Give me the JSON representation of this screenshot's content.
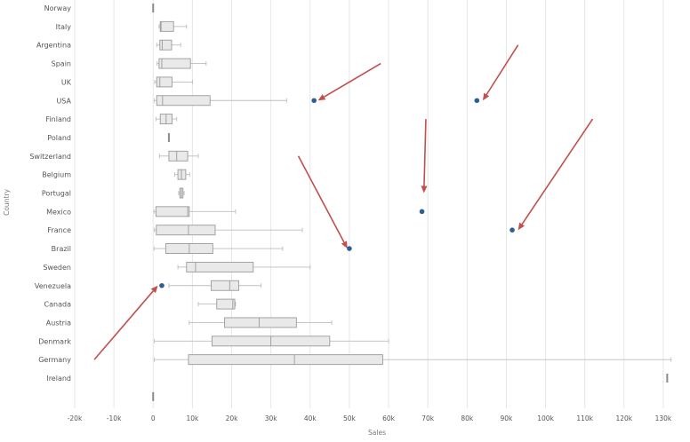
{
  "chart_data": {
    "type": "boxplot",
    "orientation": "horizontal",
    "ylabel": "Country",
    "xlabel": "Sales",
    "xlim": [
      -20000,
      135000
    ],
    "x_ticks": [
      -20000,
      -10000,
      0,
      10000,
      20000,
      30000,
      40000,
      50000,
      60000,
      70000,
      80000,
      90000,
      100000,
      110000,
      120000,
      130000
    ],
    "x_tick_labels": [
      "-20k",
      "-10k",
      "0",
      "10k",
      "20k",
      "30k",
      "40k",
      "50k",
      "60k",
      "70k",
      "80k",
      "90k",
      "100k",
      "110k",
      "120k",
      "130k"
    ],
    "grid": "vertical",
    "categories": [
      "Norway",
      "Italy",
      "Argentina",
      "Spain",
      "UK",
      "USA",
      "Finland",
      "Poland",
      "Switzerland",
      "Belgium",
      "Portugal",
      "Mexico",
      "France",
      "Brazil",
      "Sweden",
      "Venezuela",
      "Canada",
      "Austria",
      "Denmark",
      "Germany",
      "Ireland",
      ""
    ],
    "boxes": [
      {
        "category": "Norway",
        "min": 0,
        "q1": 0,
        "median": 0,
        "q3": 0,
        "max": 0
      },
      {
        "category": "Italy",
        "min": 1500,
        "q1": 1800,
        "median": 2000,
        "q3": 5200,
        "max": 8500
      },
      {
        "category": "Argentina",
        "min": 900,
        "q1": 1700,
        "median": 2300,
        "q3": 4700,
        "max": 7000
      },
      {
        "category": "Spain",
        "min": 1000,
        "q1": 1500,
        "median": 2200,
        "q3": 9500,
        "max": 13500
      },
      {
        "category": "UK",
        "min": 400,
        "q1": 900,
        "median": 1700,
        "q3": 4800,
        "max": 10000
      },
      {
        "category": "USA",
        "min": 300,
        "q1": 900,
        "median": 2400,
        "q3": 14500,
        "max": 34000
      },
      {
        "category": "Finland",
        "min": 700,
        "q1": 1800,
        "median": 3300,
        "q3": 4800,
        "max": 6000
      },
      {
        "category": "Poland",
        "min": 4000,
        "q1": 4000,
        "median": 4000,
        "q3": 4000,
        "max": 4000
      },
      {
        "category": "Switzerland",
        "min": 1600,
        "q1": 4000,
        "median": 6000,
        "q3": 8800,
        "max": 11500
      },
      {
        "category": "Belgium",
        "min": 5500,
        "q1": 6300,
        "median": 7200,
        "q3": 8300,
        "max": 9300
      },
      {
        "category": "Portugal",
        "min": 6500,
        "q1": 6800,
        "median": 7200,
        "q3": 7600,
        "max": 7900
      },
      {
        "category": "Mexico",
        "min": 200,
        "q1": 700,
        "median": 8800,
        "q3": 9200,
        "max": 21000
      },
      {
        "category": "France",
        "min": 300,
        "q1": 800,
        "median": 9000,
        "q3": 15800,
        "max": 38000
      },
      {
        "category": "Brazil",
        "min": 200,
        "q1": 3200,
        "median": 9200,
        "q3": 15200,
        "max": 33000
      },
      {
        "category": "Sweden",
        "min": 6300,
        "q1": 8500,
        "median": 10800,
        "q3": 25500,
        "max": 40000
      },
      {
        "category": "Venezuela",
        "min": 4000,
        "q1": 14800,
        "median": 19500,
        "q3": 21800,
        "max": 27500
      },
      {
        "category": "Canada",
        "min": 11500,
        "q1": 16200,
        "median": 20300,
        "q3": 20800,
        "max": 21000
      },
      {
        "category": "Austria",
        "min": 9200,
        "q1": 18200,
        "median": 27000,
        "q3": 36500,
        "max": 45500
      },
      {
        "category": "Denmark",
        "min": 300,
        "q1": 15000,
        "median": 30000,
        "q3": 45000,
        "max": 60000
      },
      {
        "category": "Germany",
        "min": 300,
        "q1": 9000,
        "median": 36000,
        "q3": 58500,
        "max": 132000
      },
      {
        "category": "Ireland",
        "min": 131000,
        "q1": 131000,
        "median": 131000,
        "q3": 131000,
        "max": 131000
      },
      {
        "category": "",
        "min": 0,
        "q1": 0,
        "median": 0,
        "q3": 0,
        "max": 0
      }
    ],
    "outliers": [
      {
        "category": "USA",
        "x": 41000
      },
      {
        "category": "USA",
        "x": 82500
      },
      {
        "category": "Mexico",
        "x": 68500
      },
      {
        "category": "France",
        "x": 91500
      },
      {
        "category": "Brazil",
        "x": 50000
      },
      {
        "category": "Venezuela",
        "x": 2200
      }
    ],
    "annotations": [
      {
        "type": "arrow",
        "from": {
          "x": 58000,
          "category": "Spain"
        },
        "to": {
          "x": 42000,
          "category": "USA"
        },
        "color": "#c0504d"
      },
      {
        "type": "arrow",
        "from": {
          "x": 93000,
          "category": "Argentina"
        },
        "to": {
          "x": 84000,
          "category": "USA"
        },
        "color": "#c0504d"
      },
      {
        "type": "arrow",
        "from": {
          "x": 69500,
          "category": "Finland"
        },
        "to": {
          "x": 69000,
          "category": "Portugal"
        },
        "color": "#c0504d"
      },
      {
        "type": "arrow",
        "from": {
          "x": 112000,
          "category": "Finland"
        },
        "to": {
          "x": 93000,
          "category": "France"
        },
        "color": "#c0504d"
      },
      {
        "type": "arrow",
        "from": {
          "x": 37000,
          "category": "Switzerland"
        },
        "to": {
          "x": 49500,
          "category": "Brazil"
        },
        "color": "#c0504d"
      },
      {
        "type": "arrow",
        "from": {
          "x": -15000,
          "category": "Germany"
        },
        "to": {
          "x": 1200,
          "category": "Venezuela"
        },
        "color": "#c0504d"
      }
    ],
    "colors": {
      "box_fill": "#e9e9e9",
      "outlier": "#2e5f94",
      "arrow": "#c0504d"
    }
  }
}
